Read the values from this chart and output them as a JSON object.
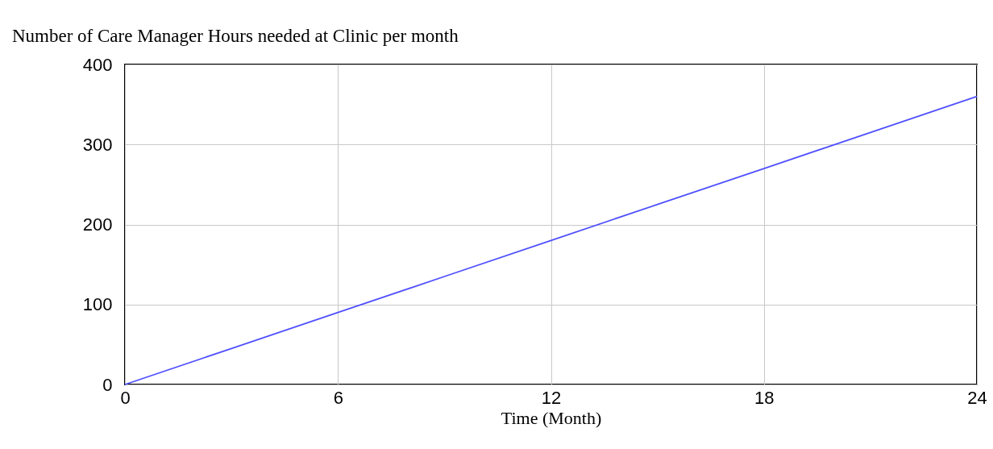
{
  "chart_data": {
    "type": "line",
    "title": "Number of Care Manager Hours needed at Clinic per month",
    "xlabel": "Time (Month)",
    "x": [
      0,
      3,
      6,
      9,
      12,
      15,
      18,
      21,
      24
    ],
    "series": [
      {
        "color": "#5050ff",
        "values": [
          0,
          45,
          90,
          135,
          180,
          225,
          270,
          315,
          360
        ]
      }
    ],
    "xlim": [
      0,
      24
    ],
    "xticks": [
      0,
      6,
      12,
      18,
      24
    ],
    "ylim": [
      0,
      400
    ],
    "yticks": [
      0,
      100,
      200,
      300,
      400
    ],
    "grid": true,
    "marker": "none",
    "line_style": "solid"
  }
}
